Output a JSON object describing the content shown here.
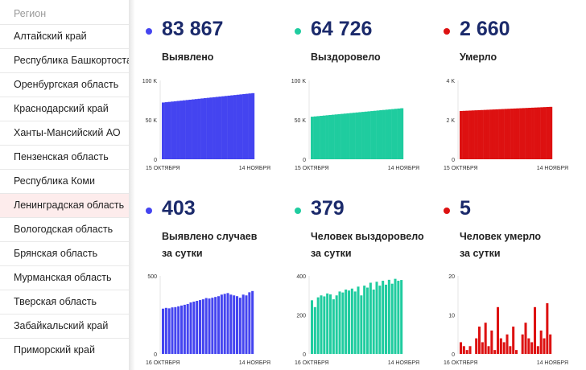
{
  "sidebar": {
    "header": "Регион",
    "regions": [
      "Алтайский край",
      "Республика Башкортостан",
      "Оренбургская область",
      "Краснодарский край",
      "Ханты-Мансийский АО",
      "Пензенская область",
      "Республика Коми",
      "Ленинградская область",
      "Вологодская область",
      "Брянская область",
      "Мурманская область",
      "Тверская область",
      "Забайкальский край",
      "Приморский край"
    ],
    "active_index": 7
  },
  "cards": [
    {
      "value": "83 867",
      "label1": "Выявлено",
      "label2": "",
      "color": "#4444f0"
    },
    {
      "value": "64 726",
      "label1": "Выздоровело",
      "label2": "",
      "color": "#1fcc9f"
    },
    {
      "value": "2 660",
      "label1": "Умерло",
      "label2": "",
      "color": "#dd1111"
    },
    {
      "value": "403",
      "label1": "Выявлено случаев",
      "label2": "за сутки",
      "color": "#4444f0"
    },
    {
      "value": "379",
      "label1": "Человек выздоровело",
      "label2": "за сутки",
      "color": "#1fcc9f"
    },
    {
      "value": "5",
      "label1": "Человек умерло",
      "label2": "за сутки",
      "color": "#dd1111"
    }
  ],
  "chart_data": [
    {
      "type": "bar",
      "xlabel_start": "15 ОКТЯБРЯ",
      "xlabel_end": "14 НОЯБРЯ",
      "ylim": [
        0,
        100000
      ],
      "yticks": [
        "0",
        "50 K",
        "100 K"
      ],
      "tickvals": [
        0,
        50000,
        100000
      ],
      "color": "#4444f0",
      "start": 72000,
      "end": 83867,
      "n": 31,
      "kind": "cumulative"
    },
    {
      "type": "bar",
      "xlabel_start": "15 ОКТЯБРЯ",
      "xlabel_end": "14 НОЯБРЯ",
      "ylim": [
        0,
        100000
      ],
      "yticks": [
        "0",
        "50 K",
        "100 K"
      ],
      "tickvals": [
        0,
        50000,
        100000
      ],
      "color": "#1fcc9f",
      "start": 54000,
      "end": 64726,
      "n": 31,
      "kind": "cumulative"
    },
    {
      "type": "bar",
      "xlabel_start": "15 ОКТЯБРЯ",
      "xlabel_end": "14 НОЯБРЯ",
      "ylim": [
        0,
        4000
      ],
      "yticks": [
        "0",
        "2 K",
        "4 K"
      ],
      "tickvals": [
        0,
        2000,
        4000
      ],
      "color": "#dd1111",
      "start": 2450,
      "end": 2660,
      "n": 31,
      "kind": "cumulative"
    },
    {
      "type": "bar",
      "xlabel_start": "16 ОКТЯБРЯ",
      "xlabel_end": "14 НОЯБРЯ",
      "ylim": [
        0,
        500
      ],
      "yticks": [
        "0",
        "500"
      ],
      "tickvals": [
        0,
        500
      ],
      "color": "#4444f0",
      "values": [
        290,
        295,
        292,
        298,
        300,
        305,
        310,
        315,
        320,
        330,
        335,
        340,
        345,
        350,
        358,
        355,
        360,
        365,
        370,
        380,
        385,
        390,
        380,
        375,
        370,
        360,
        380,
        375,
        395,
        403
      ]
    },
    {
      "type": "bar",
      "xlabel_start": "16 ОКТЯБРЯ",
      "xlabel_end": "14 НОЯБРЯ",
      "ylim": [
        0,
        400
      ],
      "yticks": [
        "0",
        "200",
        "400"
      ],
      "tickvals": [
        0,
        200,
        400
      ],
      "color": "#1fcc9f",
      "values": [
        275,
        240,
        290,
        300,
        295,
        310,
        305,
        280,
        300,
        320,
        315,
        330,
        325,
        335,
        320,
        345,
        300,
        350,
        340,
        365,
        330,
        370,
        350,
        375,
        355,
        380,
        360,
        385,
        375,
        379
      ]
    },
    {
      "type": "bar",
      "xlabel_start": "16 ОКТЯБРЯ",
      "xlabel_end": "14 НОЯБРЯ",
      "ylim": [
        0,
        20
      ],
      "yticks": [
        "0",
        "10",
        "20"
      ],
      "tickvals": [
        0,
        10,
        20
      ],
      "color": "#dd1111",
      "values": [
        3,
        2,
        1,
        2,
        0,
        4,
        7,
        3,
        8,
        2,
        6,
        1,
        12,
        4,
        3,
        5,
        2,
        7,
        1,
        0,
        5,
        8,
        4,
        3,
        12,
        2,
        6,
        4,
        13,
        5
      ]
    }
  ]
}
